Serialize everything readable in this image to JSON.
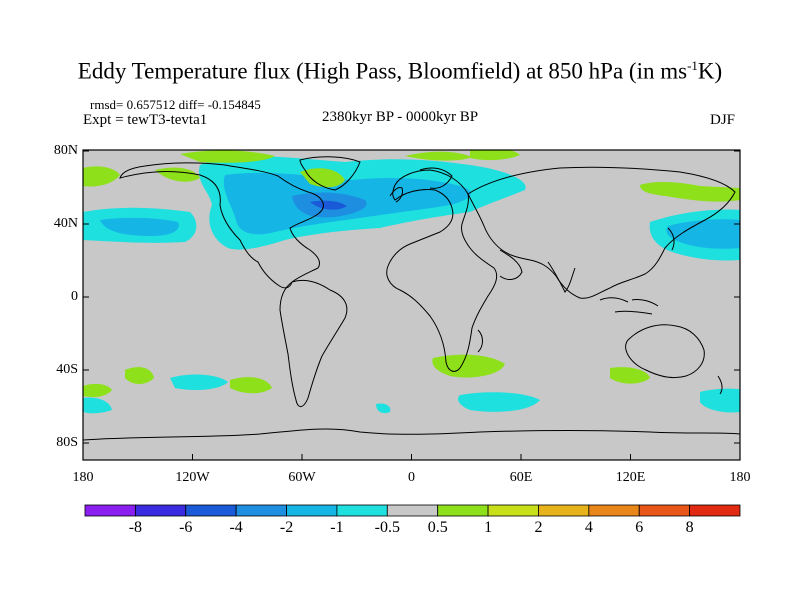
{
  "title": "Eddy Temperature flux (High Pass, Bloomfield) at 850 hPa (in ms",
  "title_sup": "-1",
  "title_end": "K)",
  "stats": "rmsd= 0.657512 diff= -0.154845",
  "experiment": "Expt = tewT3-tevta1",
  "period": "2380kyr BP - 0000kyr BP",
  "season": "DJF",
  "lat_ticks": [
    "80N",
    "40N",
    "0",
    "40S",
    "80S"
  ],
  "lon_ticks": [
    "180",
    "120W",
    "60W",
    "0",
    "60E",
    "120E",
    "180"
  ],
  "colorbar": {
    "labels": [
      "-8",
      "-6",
      "-4",
      "-2",
      "-1",
      "-0.5",
      "0.5",
      "1",
      "2",
      "4",
      "6",
      "8"
    ],
    "colors": [
      "#8a1ff0",
      "#3b2be0",
      "#1a5ad8",
      "#1d8ee0",
      "#15b5e6",
      "#1ee0df",
      "#c8c8c8",
      "#8ee01a",
      "#c8e01a",
      "#e6b41a",
      "#e8861a",
      "#e8561a",
      "#e02a12"
    ]
  },
  "map": {
    "background": "#c8c8c8",
    "coast": "#000000"
  }
}
